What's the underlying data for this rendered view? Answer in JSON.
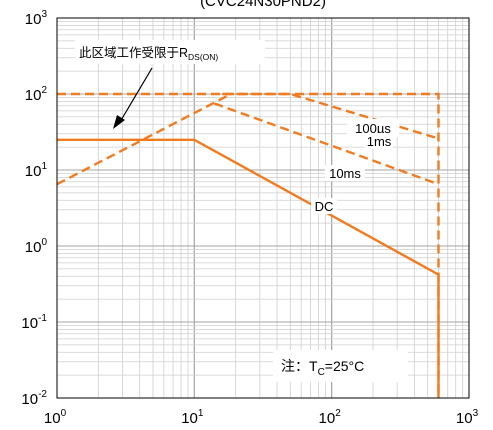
{
  "chart_data": {
    "type": "line",
    "title": "(CVC24N30PND2)",
    "x_scale": "log",
    "y_scale": "log",
    "xlim": [
      1,
      1000
    ],
    "ylim": [
      0.01,
      1000
    ],
    "grid": true,
    "x_ticks": [
      {
        "value": 1,
        "base": "10",
        "exp": "0"
      },
      {
        "value": 10,
        "base": "10",
        "exp": "1"
      },
      {
        "value": 100,
        "base": "10",
        "exp": "2"
      },
      {
        "value": 1000,
        "base": "10",
        "exp": "3"
      }
    ],
    "y_ticks": [
      {
        "value": 0.01,
        "base": "10",
        "exp": "-2"
      },
      {
        "value": 0.1,
        "base": "10",
        "exp": "-1"
      },
      {
        "value": 1,
        "base": "10",
        "exp": "0"
      },
      {
        "value": 10,
        "base": "10",
        "exp": "1"
      },
      {
        "value": 100,
        "base": "10",
        "exp": "2"
      },
      {
        "value": 1000,
        "base": "10",
        "exp": "3"
      }
    ],
    "rds_limit": {
      "style": "dashed",
      "x": [
        1,
        18.5
      ],
      "y": [
        6.5,
        100
      ]
    },
    "series": [
      {
        "name": "100µs",
        "style": "dashed",
        "x": [
          1,
          600,
          600
        ],
        "y": [
          100,
          100,
          0.01
        ]
      },
      {
        "name": "1ms",
        "style": "dashed",
        "x": [
          16,
          50,
          600
        ],
        "y": [
          100,
          100,
          26
        ]
      },
      {
        "name": "10ms",
        "style": "dashed",
        "x": [
          14,
          600
        ],
        "y": [
          75,
          6.5
        ]
      },
      {
        "name": "DC",
        "style": "solid",
        "x": [
          1,
          10,
          600,
          600
        ],
        "y": [
          25,
          25,
          0.42,
          0.01
        ]
      }
    ],
    "series_labels": [
      "100µs",
      "1ms",
      "10ms",
      "DC"
    ],
    "annotations": {
      "rds_text": "此区域工作受限于R",
      "rds_sub": "DS(ON)",
      "note_prefix": "注：T",
      "note_sub": "C",
      "note_suffix": "=25°C"
    },
    "colors": {
      "curve": "#f07c22",
      "grid_major": "#a6a6a6",
      "grid_minor": "#cfcfcf",
      "axis": "#000000"
    }
  }
}
